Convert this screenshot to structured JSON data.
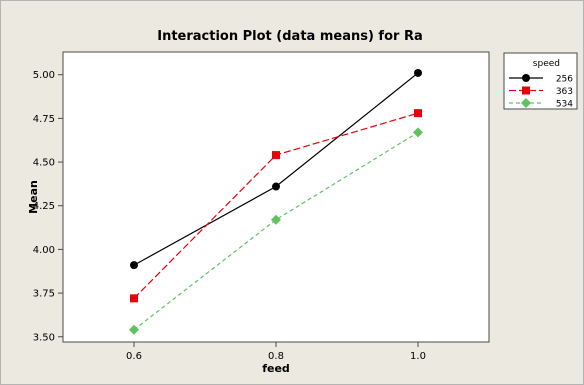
{
  "chart_data": {
    "type": "line",
    "title": "Interaction Plot (data means) for Ra",
    "xlabel": "feed",
    "ylabel": "Mean",
    "categories": [
      "0.6",
      "0.8",
      "1.0"
    ],
    "x": [
      0.6,
      0.8,
      1.0
    ],
    "xlim": [
      0.5,
      1.1
    ],
    "ylim": [
      3.47,
      5.13
    ],
    "yticks": [
      3.5,
      3.75,
      4.0,
      4.25,
      4.5,
      4.75,
      5.0
    ],
    "ytick_labels": [
      "3.50",
      "3.75",
      "4.00",
      "4.25",
      "4.50",
      "4.75",
      "5.00"
    ],
    "grid": false,
    "legend": {
      "title": "speed",
      "placement": "right"
    },
    "series": [
      {
        "name": "256",
        "values": [
          3.91,
          4.36,
          5.01
        ],
        "color": "#000000",
        "marker": "circle",
        "dash": "solid"
      },
      {
        "name": "363",
        "values": [
          3.72,
          4.54,
          4.78
        ],
        "color": "#e8000b",
        "marker": "square",
        "dash": "long-dash"
      },
      {
        "name": "534",
        "values": [
          3.54,
          4.17,
          4.67
        ],
        "color": "#5ec35e",
        "marker": "diamond",
        "dash": "short-dash"
      }
    ]
  }
}
